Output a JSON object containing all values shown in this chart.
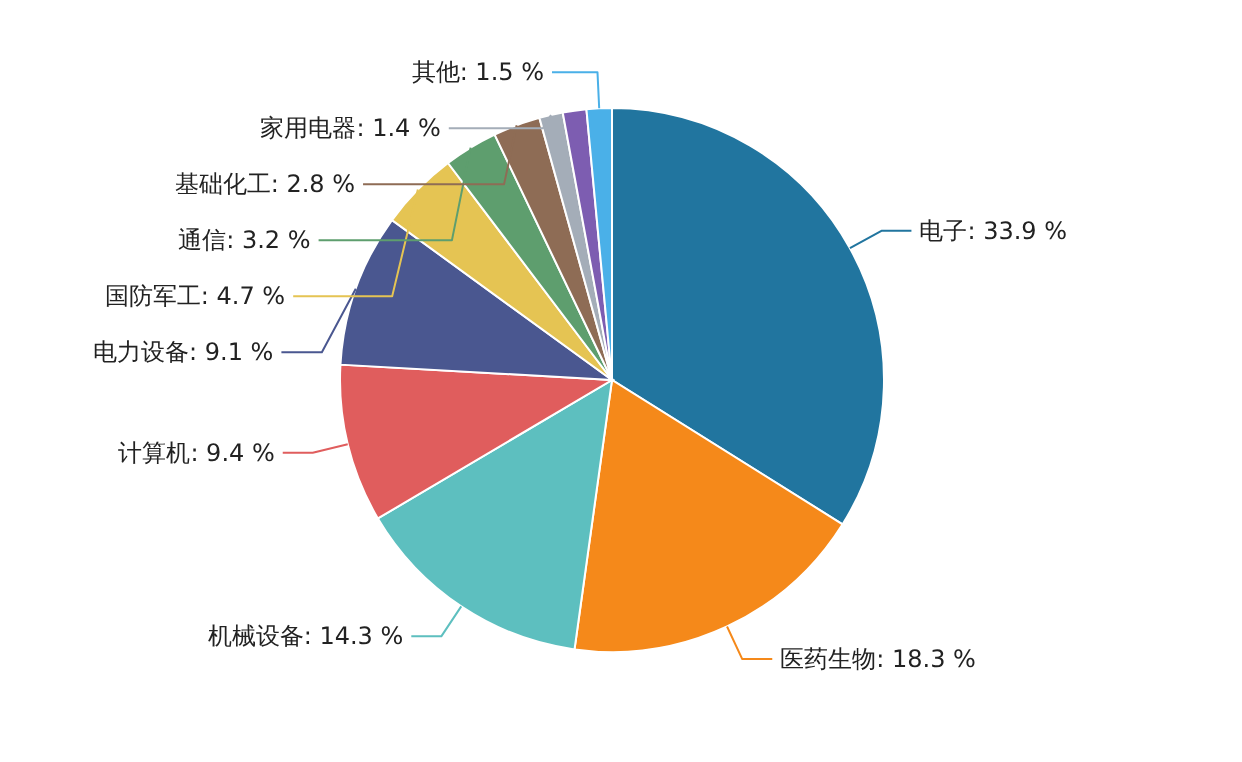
{
  "chart_data": {
    "type": "pie",
    "categories": [
      "电子",
      "医药生物",
      "机械设备",
      "计算机",
      "电力设备",
      "国防军工",
      "通信",
      "基础化工",
      "家用电器",
      null,
      "其他"
    ],
    "values": [
      33.9,
      18.3,
      14.3,
      9.4,
      9.1,
      4.7,
      3.2,
      2.8,
      1.4,
      1.4,
      1.5
    ],
    "value_labels": [
      "33.9 %",
      "18.3 %",
      "14.3 %",
      "9.4 %",
      "9.1 %",
      "4.7 %",
      "3.2 %",
      "2.8 %",
      "1.4 %",
      null,
      "1.5 %"
    ],
    "colors": [
      "#21759f",
      "#f5891a",
      "#5dbfbf",
      "#e05d5d",
      "#4a5790",
      "#e5c453",
      "#5e9e6e",
      "#8e6c55",
      "#a4adb8",
      "#7d5db1",
      "#4ab0e8"
    ]
  }
}
